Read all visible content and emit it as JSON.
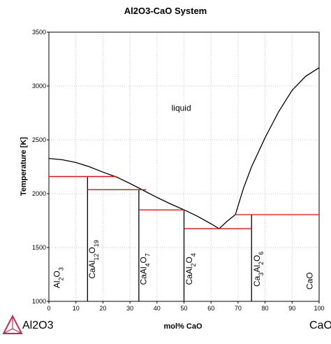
{
  "chart_data": {
    "type": "line",
    "title": "Al2O3-CaO System",
    "x_label": "mol% CaO",
    "y_label": "Temperature [K]",
    "xlim": [
      0,
      100
    ],
    "ylim": [
      1000,
      3500
    ],
    "xticks": [
      0,
      10,
      20,
      30,
      40,
      50,
      60,
      70,
      80,
      90,
      100
    ],
    "yticks": [
      1000,
      1500,
      2000,
      2500,
      3000,
      3500
    ],
    "grid": true,
    "components": [
      "Al2O3",
      "CaO"
    ],
    "series": [
      {
        "color": "#000000",
        "x": [
          0,
          5,
          10,
          15,
          20,
          25,
          30,
          35,
          40,
          45,
          50,
          55,
          60,
          63
        ],
        "values": [
          2327,
          2315,
          2290,
          2250,
          2200,
          2155,
          2095,
          2030,
          1965,
          1905,
          1850,
          1790,
          1720,
          1675
        ]
      },
      {
        "color": "#000000",
        "x": [
          63,
          66,
          69,
          72,
          75,
          80,
          85,
          90,
          95,
          100
        ],
        "values": [
          1675,
          1745,
          1805,
          2050,
          2250,
          2520,
          2760,
          2960,
          3090,
          3170
        ]
      },
      {
        "color": "#000000",
        "x": [
          14.3,
          14.3
        ],
        "values": [
          1000,
          2160
        ]
      },
      {
        "color": "#000000",
        "x": [
          33.3,
          33.3
        ],
        "values": [
          1000,
          2037
        ]
      },
      {
        "color": "#000000",
        "x": [
          50,
          50
        ],
        "values": [
          1000,
          1850
        ]
      },
      {
        "color": "#000000",
        "x": [
          75,
          75
        ],
        "values": [
          1000,
          1805
        ]
      },
      {
        "color": "#ff0000",
        "x": [
          0,
          25
        ],
        "values": [
          2160,
          2160
        ]
      },
      {
        "color": "#ff0000",
        "x": [
          14.3,
          36
        ],
        "values": [
          2037,
          2037
        ]
      },
      {
        "color": "#ff0000",
        "x": [
          33.3,
          50
        ],
        "values": [
          1850,
          1850
        ]
      },
      {
        "color": "#ff0000",
        "x": [
          50,
          75
        ],
        "values": [
          1675,
          1675
        ]
      },
      {
        "color": "#ff0000",
        "x": [
          69,
          100
        ],
        "values": [
          1805,
          1805
        ]
      }
    ],
    "annotations": [
      {
        "text": "liquid",
        "x": 49,
        "y": 2770
      }
    ],
    "phase_labels": [
      {
        "text": "Al2O3",
        "x": 4,
        "y": 1220
      },
      {
        "text": "CaAl12O19",
        "x": 17,
        "y": 1390
      },
      {
        "text": "CaAl4O7",
        "x": 36,
        "y": 1300
      },
      {
        "text": "CaAl2O4",
        "x": 53,
        "y": 1300
      },
      {
        "text": "Ca3Al2O6",
        "x": 78,
        "y": 1300
      },
      {
        "text": "CaO",
        "x": 97.5,
        "y": 1190
      }
    ]
  }
}
